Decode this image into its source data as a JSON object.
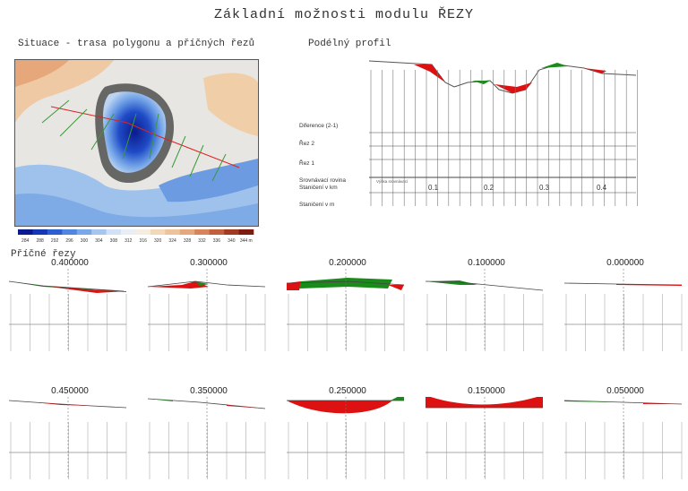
{
  "title": "Základní možnosti modulu ŘEZY",
  "situation": {
    "title": "Situace - trasa polygonu a příčných řezů",
    "legend_ticks": [
      "284",
      "288",
      "292",
      "296",
      "300",
      "304",
      "308",
      "312",
      "316",
      "320",
      "324",
      "328",
      "332",
      "336",
      "340",
      "344 m"
    ],
    "legend_colors": [
      "#0b1a8c",
      "#1538b5",
      "#2b5fd0",
      "#4e86e0",
      "#78a8ea",
      "#a6c6f0",
      "#d2e1f6",
      "#e9eef4",
      "#f6ece0",
      "#f2d8b8",
      "#eec29a",
      "#e6a77a",
      "#d8845a",
      "#c2603c",
      "#a33a22",
      "#7d1c10"
    ]
  },
  "profile": {
    "title": "Podélný profil",
    "rows": {
      "diff": "Diference (2-1)",
      "rez2": "Řez 2",
      "rez1": "Řez 1",
      "ref": "Srovnávací rovina",
      "ref_value": "Výška srovnávací",
      "km": "Staničení v km",
      "m": "Staničení v m"
    },
    "km_ticks": [
      "0.1",
      "0.2",
      "0.3",
      "0.4"
    ]
  },
  "cross_sections": {
    "title": "Příčné řezy",
    "row1": [
      "0.400000",
      "0.300000",
      "0.200000",
      "0.100000",
      "0.000000"
    ],
    "row2": [
      "0.450000",
      "0.350000",
      "0.250000",
      "0.150000",
      "0.050000"
    ]
  },
  "colors": {
    "cut": "#dd1111",
    "fill": "#1a8a1a",
    "line": "#444444"
  }
}
